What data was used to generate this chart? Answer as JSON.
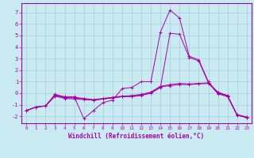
{
  "title": "",
  "xlabel": "Windchill (Refroidissement éolien,°C)",
  "ylabel": "",
  "bg_color": "#c8eaf0",
  "grid_color": "#aad4dc",
  "line_color": "#aa00aa",
  "xlim": [
    -0.5,
    23.5
  ],
  "ylim": [
    -2.6,
    7.8
  ],
  "yticks": [
    -2,
    -1,
    0,
    1,
    2,
    3,
    4,
    5,
    6,
    7
  ],
  "xticks": [
    0,
    1,
    2,
    3,
    4,
    5,
    6,
    7,
    8,
    9,
    10,
    11,
    12,
    13,
    14,
    15,
    16,
    17,
    18,
    19,
    20,
    21,
    22,
    23
  ],
  "series": [
    {
      "x": [
        0,
        1,
        2,
        3,
        4,
        5,
        6,
        7,
        8,
        9,
        10,
        11,
        12,
        13,
        14,
        15,
        16,
        17,
        18,
        19,
        20,
        21,
        22,
        23
      ],
      "y": [
        -1.5,
        -1.2,
        -1.1,
        -0.1,
        -0.3,
        -0.3,
        -2.2,
        -1.5,
        -0.8,
        -0.6,
        0.4,
        0.5,
        1.0,
        1.0,
        5.3,
        7.2,
        6.5,
        3.2,
        2.9,
        1.0,
        0.0,
        -0.2,
        -1.9,
        -2.1
      ]
    },
    {
      "x": [
        0,
        1,
        2,
        3,
        4,
        5,
        6,
        7,
        8,
        9,
        10,
        11,
        12,
        13,
        14,
        15,
        16,
        17,
        18,
        19,
        20,
        21,
        22,
        23
      ],
      "y": [
        -1.5,
        -1.2,
        -1.1,
        -0.2,
        -0.4,
        -0.4,
        -0.5,
        -0.6,
        -0.5,
        -0.4,
        -0.3,
        -0.3,
        -0.2,
        0.0,
        0.5,
        5.2,
        5.1,
        3.1,
        2.8,
        0.9,
        -0.05,
        -0.3,
        -1.9,
        -2.1
      ]
    },
    {
      "x": [
        0,
        1,
        2,
        3,
        4,
        5,
        6,
        7,
        8,
        9,
        10,
        11,
        12,
        13,
        14,
        15,
        16,
        17,
        18,
        19,
        20,
        21,
        22,
        23
      ],
      "y": [
        -1.5,
        -1.2,
        -1.1,
        -0.15,
        -0.35,
        -0.35,
        -0.45,
        -0.55,
        -0.45,
        -0.35,
        -0.25,
        -0.2,
        -0.1,
        0.1,
        0.6,
        0.75,
        0.85,
        0.8,
        0.85,
        0.9,
        0.1,
        -0.2,
        -1.9,
        -2.1
      ]
    },
    {
      "x": [
        0,
        1,
        2,
        3,
        4,
        5,
        6,
        7,
        8,
        9,
        10,
        11,
        12,
        13,
        14,
        15,
        16,
        17,
        18,
        19,
        20,
        21,
        22,
        23
      ],
      "y": [
        -1.5,
        -1.2,
        -1.1,
        -0.25,
        -0.45,
        -0.5,
        -0.55,
        -0.6,
        -0.5,
        -0.4,
        -0.3,
        -0.25,
        -0.15,
        0.05,
        0.55,
        0.65,
        0.75,
        0.75,
        0.8,
        0.85,
        0.05,
        -0.25,
        -1.85,
        -2.05
      ]
    }
  ]
}
